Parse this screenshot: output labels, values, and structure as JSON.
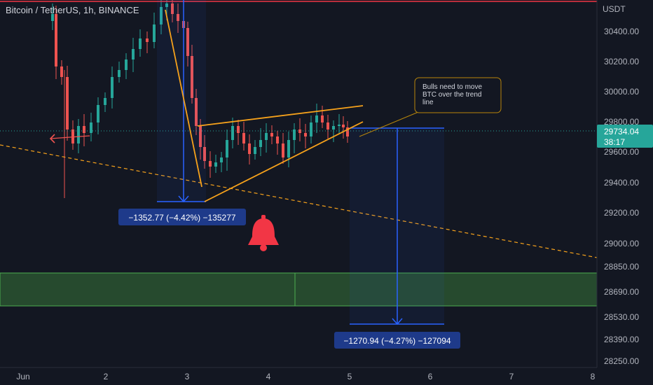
{
  "header": {
    "symbol": "Bitcoin / TetherUS, 1h, BINANCE"
  },
  "price_axis": {
    "unit": "USDT",
    "ticks": [
      "30400.00",
      "30200.00",
      "30000.00",
      "29800.00",
      "29600.00",
      "29400.00",
      "29200.00",
      "29000.00",
      "28850.00",
      "28690.00",
      "28530.00",
      "28390.00",
      "28250.00"
    ],
    "current_price": "29734.04",
    "countdown": "38:17"
  },
  "time_axis": {
    "ticks": [
      "Jun",
      "2",
      "3",
      "4",
      "5",
      "6",
      "7",
      "8"
    ]
  },
  "annotations": {
    "note": "Bulls need to move BTC over the trend line",
    "measure1": "−1352.77 (−4.42%) −135277",
    "measure2": "−1270.94 (−4.27%) −127094"
  },
  "colors": {
    "background": "#131722",
    "bull": "#26a69a",
    "bear": "#ef5350",
    "trend": "#f7a21b",
    "measure": "#2962ff",
    "zone": "#2e5c33",
    "alert": "#f23645"
  },
  "chart_data": {
    "type": "candlestick",
    "title": "Bitcoin / TetherUS, 1h, BINANCE",
    "y_unit": "USDT",
    "x_ticks": [
      "Jun",
      "2",
      "3",
      "4",
      "5",
      "6",
      "7",
      "8"
    ],
    "y_ticks": [
      30400,
      30200,
      30000,
      29800,
      29600,
      29400,
      29200,
      29000,
      28850,
      28690,
      28530,
      28390,
      28250
    ],
    "last_price": 29734.04,
    "demand_zone": [
      28560,
      28830
    ],
    "measure_1": {
      "from": 30650,
      "to": 29300,
      "change": -1352.77,
      "pct": -4.42
    },
    "measure_2": {
      "from": 29760,
      "to": 28515,
      "change": -1270.94,
      "pct": -4.27
    }
  }
}
